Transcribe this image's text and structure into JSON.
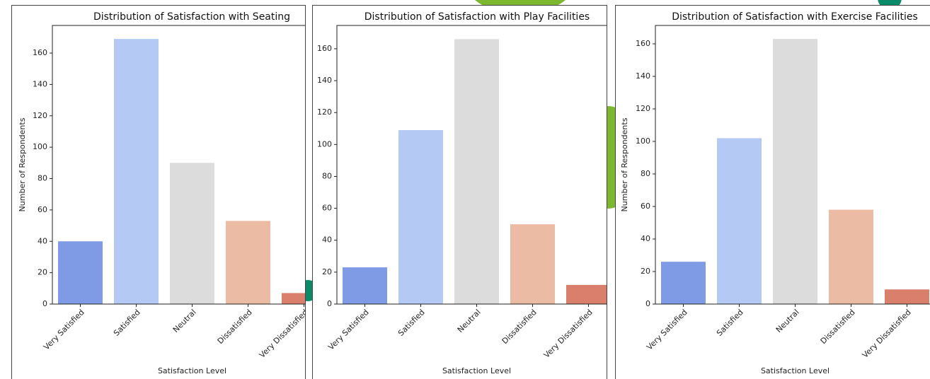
{
  "chart_data": [
    {
      "type": "bar",
      "title": "Distribution of Satisfaction with Seating",
      "x_label": "Satisfaction Level",
      "y_label": "Number of Respondents",
      "categories": [
        "Very Satisfied",
        "Satisfied",
        "Neutral",
        "Dissatisfied",
        "Very Dissatisfied"
      ],
      "values": [
        40,
        169,
        90,
        53,
        7
      ],
      "colors": [
        "#7f9be5",
        "#b4c9f4",
        "#dcdcdc",
        "#ecbba4",
        "#d97f6b"
      ],
      "ylim": [
        0,
        177.6
      ],
      "yticks": [
        0,
        20,
        40,
        60,
        80,
        100,
        120,
        140,
        160
      ]
    },
    {
      "type": "bar",
      "title": "Distribution of Satisfaction with Play Facilities",
      "x_label": "Satisfaction Level",
      "categories": [
        "Very Satisfied",
        "Satisfied",
        "Neutral",
        "Dissatisfied",
        "Very Dissatisfied"
      ],
      "values": [
        23,
        109,
        166,
        50,
        12
      ],
      "colors": [
        "#7f9be5",
        "#b4c9f4",
        "#dcdcdc",
        "#ecbba4",
        "#d97f6b"
      ],
      "ylim": [
        0,
        174.6
      ],
      "yticks": [
        0,
        20,
        40,
        60,
        80,
        100,
        120,
        140,
        160
      ]
    },
    {
      "type": "bar",
      "title": "Distribution of Satisfaction with Exercise Facilities",
      "x_label": "Satisfaction Level",
      "y_label": "Number of Respondents",
      "categories": [
        "Very Satisfied",
        "Satisfied",
        "Neutral",
        "Dissatisfied",
        "Very Dissatisfied"
      ],
      "values": [
        26,
        102,
        163,
        58,
        9
      ],
      "colors": [
        "#7f9be5",
        "#b4c9f4",
        "#dcdcdc",
        "#ecbba4",
        "#d97f6b"
      ],
      "ylim": [
        0,
        171.3
      ],
      "yticks": [
        0,
        20,
        40,
        60,
        80,
        100,
        120,
        140,
        160
      ]
    }
  ]
}
